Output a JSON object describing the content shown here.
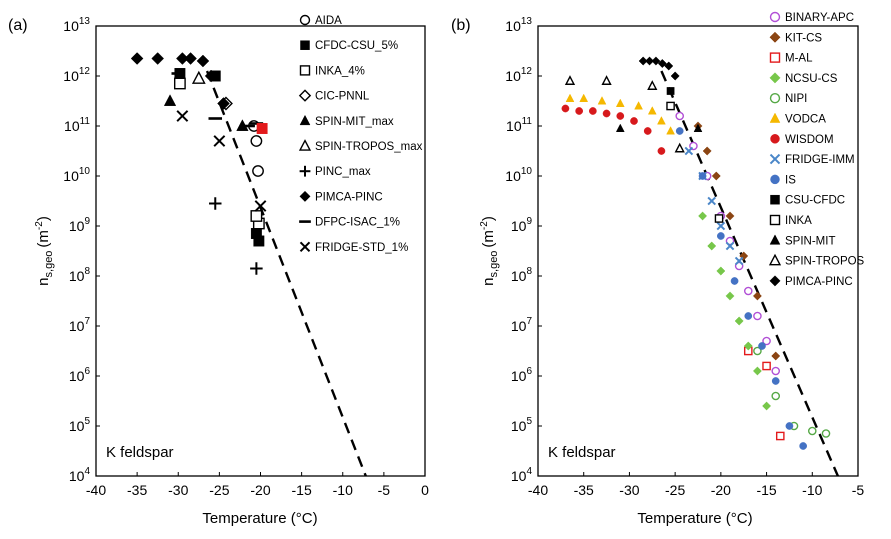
{
  "chart_data": [
    {
      "type": "scatter",
      "panel_label": "(a)",
      "annotation": "K feldspar",
      "xlabel": "Temperature (°C)",
      "ylabel_base": "n",
      "ylabel_sub": "s,geo",
      "ylabel_unit": "(m",
      "ylabel_unit_sup": "-2",
      "ylabel_close": ")",
      "xlim": [
        -40,
        0
      ],
      "ylim_log10": [
        4,
        13
      ],
      "log_y": true,
      "grid": false,
      "legend_position": "top-right",
      "x_ticks": [
        "-40",
        "-35",
        "-30",
        "-25",
        "-20",
        "-15",
        "-10",
        "-5",
        "0"
      ],
      "y_ticks": [
        {
          "base": "10",
          "exp": "4"
        },
        {
          "base": "10",
          "exp": "5"
        },
        {
          "base": "10",
          "exp": "6"
        },
        {
          "base": "10",
          "exp": "7"
        },
        {
          "base": "10",
          "exp": "8"
        },
        {
          "base": "10",
          "exp": "9"
        },
        {
          "base": "10",
          "exp": "10"
        },
        {
          "base": "10",
          "exp": "11"
        },
        {
          "base": "10",
          "exp": "12"
        },
        {
          "base": "10",
          "exp": "13"
        }
      ],
      "fit_line": {
        "style": "dashed",
        "color": "#000000",
        "x": [
          -26.5,
          -7.2
        ],
        "log10_y": [
          12.1,
          4.0
        ]
      },
      "series": [
        {
          "name": "AIDA",
          "marker": "circle-open",
          "color": "#000000",
          "x": [
            -20.3,
            -20.5,
            -20.8
          ],
          "log10_y": [
            10.1,
            10.7,
            11.0
          ]
        },
        {
          "name": "CFDC-CSU_5%",
          "marker": "square-filled",
          "color": "#000000",
          "x": [
            -20.2,
            -20.5,
            -29.8,
            -25.5
          ],
          "log10_y": [
            8.7,
            8.85,
            12.05,
            12.0
          ]
        },
        {
          "name": "INKA_4%",
          "marker": "square-open",
          "color": "#000000",
          "x": [
            -20.2,
            -20.5,
            -29.8
          ],
          "log10_y": [
            9.05,
            9.2,
            11.85
          ]
        },
        {
          "name": "CIC-PNNL",
          "marker": "diamond-open",
          "color": "#000000",
          "x": [
            -24.2
          ],
          "log10_y": [
            11.45
          ]
        },
        {
          "name": "SPIN-MIT_max",
          "marker": "triangle-filled",
          "color": "#000000",
          "x": [
            -31.0,
            -22.2
          ],
          "log10_y": [
            11.5,
            11.0
          ]
        },
        {
          "name": "SPIN-TROPOS_max",
          "marker": "triangle-open",
          "color": "#000000",
          "x": [
            -27.5
          ],
          "log10_y": [
            11.95
          ]
        },
        {
          "name": "PINC_max",
          "marker": "plus",
          "color": "#000000",
          "x": [
            -25.5,
            -20.5
          ],
          "log10_y": [
            9.45,
            8.15
          ]
        },
        {
          "name": "PIMCA-PINC",
          "marker": "diamond-filled",
          "color": "#000000",
          "x": [
            -35.0,
            -32.5,
            -29.5,
            -28.5,
            -27.0,
            -26.0,
            -24.5
          ],
          "log10_y": [
            12.35,
            12.35,
            12.35,
            12.35,
            12.3,
            12.0,
            11.45
          ]
        },
        {
          "name": "DFPC-ISAC_1%",
          "marker": "dash",
          "color": "#000000",
          "x": [
            -30.0,
            -25.5,
            -21.5,
            -20.5
          ],
          "log10_y": [
            12.05,
            11.15,
            11.0,
            11.05
          ]
        },
        {
          "name": "FRIDGE-STD_1%",
          "marker": "x",
          "color": "#000000",
          "x": [
            -29.5,
            -25.0,
            -20.0
          ],
          "log10_y": [
            11.2,
            10.7,
            9.4
          ]
        },
        {
          "name": "",
          "marker": "square-filled",
          "color": "#e31a1c",
          "x": [
            -19.8
          ],
          "log10_y": [
            10.95
          ]
        }
      ]
    },
    {
      "type": "scatter",
      "panel_label": "(b)",
      "annotation": "K feldspar",
      "xlabel": "Temperature (°C)",
      "ylabel_base": "n",
      "ylabel_sub": "s,geo",
      "ylabel_unit": "(m",
      "ylabel_unit_sup": "-2",
      "ylabel_close": ")",
      "xlim": [
        -40,
        -5
      ],
      "ylim_log10": [
        4,
        13
      ],
      "log_y": true,
      "grid": false,
      "legend_position": "top-right",
      "x_ticks": [
        "-40",
        "-35",
        "-30",
        "-25",
        "-20",
        "-15",
        "-10",
        "-5"
      ],
      "y_ticks": [
        {
          "base": "10",
          "exp": "4"
        },
        {
          "base": "10",
          "exp": "5"
        },
        {
          "base": "10",
          "exp": "6"
        },
        {
          "base": "10",
          "exp": "7"
        },
        {
          "base": "10",
          "exp": "8"
        },
        {
          "base": "10",
          "exp": "9"
        },
        {
          "base": "10",
          "exp": "10"
        },
        {
          "base": "10",
          "exp": "11"
        },
        {
          "base": "10",
          "exp": "12"
        },
        {
          "base": "10",
          "exp": "13"
        }
      ],
      "fit_line": {
        "style": "dashed",
        "color": "#000000",
        "x": [
          -26.5,
          -7.2
        ],
        "log10_y": [
          12.1,
          4.0
        ]
      },
      "series": [
        {
          "name": "BINARY-APC",
          "marker": "circle-open",
          "color": "#b14fd6",
          "x": [
            -24.5,
            -23,
            -21.5,
            -20,
            -19,
            -18,
            -17,
            -16,
            -15,
            -14
          ],
          "log10_y": [
            11.2,
            10.6,
            10.0,
            9.2,
            8.7,
            8.2,
            7.7,
            7.2,
            6.7,
            6.1
          ]
        },
        {
          "name": "KIT-CS",
          "marker": "diamond-filled",
          "color": "#8b4513",
          "x": [
            -22.5,
            -21.5,
            -20.5,
            -19,
            -17.5,
            -16,
            -14
          ],
          "log10_y": [
            11.0,
            10.5,
            10.0,
            9.2,
            8.4,
            7.6,
            6.4
          ]
        },
        {
          "name": "M-AL",
          "marker": "square-open",
          "color": "#e31a1c",
          "x": [
            -17,
            -15,
            -13.5
          ],
          "log10_y": [
            6.5,
            6.2,
            4.8
          ]
        },
        {
          "name": "NCSU-CS",
          "marker": "diamond-filled",
          "color": "#77c74a",
          "x": [
            -22,
            -21,
            -20,
            -19,
            -18,
            -17,
            -16,
            -15
          ],
          "log10_y": [
            9.2,
            8.6,
            8.1,
            7.6,
            7.1,
            6.6,
            6.1,
            5.4
          ]
        },
        {
          "name": "NIPI",
          "marker": "circle-open",
          "color": "#55a845",
          "x": [
            -16,
            -14,
            -12,
            -10,
            -8.5
          ],
          "log10_y": [
            6.5,
            5.6,
            5.0,
            4.9,
            4.85
          ]
        },
        {
          "name": "VODCA",
          "marker": "triangle-filled",
          "color": "#f5b800",
          "x": [
            -36.5,
            -35,
            -33,
            -31,
            -29,
            -27.5,
            -26.5,
            -25.5
          ],
          "log10_y": [
            11.55,
            11.55,
            11.5,
            11.45,
            11.4,
            11.3,
            11.1,
            10.9
          ]
        },
        {
          "name": "WISDOM",
          "marker": "circle-filled",
          "color": "#d7191c",
          "x": [
            -37,
            -35.5,
            -34,
            -32.5,
            -31,
            -29.5,
            -28,
            -26.5
          ],
          "log10_y": [
            11.35,
            11.3,
            11.3,
            11.25,
            11.2,
            11.1,
            10.9,
            10.5
          ]
        },
        {
          "name": "FRIDGE-IMM",
          "marker": "x",
          "color": "#4a86c8",
          "x": [
            -23.5,
            -22,
            -21,
            -20,
            -19,
            -18
          ],
          "log10_y": [
            10.5,
            10.0,
            9.5,
            9.0,
            8.6,
            8.3
          ]
        },
        {
          "name": "IS",
          "marker": "circle-filled",
          "color": "#4472c4",
          "x": [
            -24.5,
            -22,
            -20,
            -18.5,
            -17,
            -15.5,
            -14,
            -12.5,
            -11
          ],
          "log10_y": [
            10.9,
            10.0,
            8.8,
            7.9,
            7.2,
            6.6,
            5.9,
            5.0,
            4.6
          ]
        },
        {
          "name": "CSU-CFDC",
          "marker": "square-filled",
          "color": "#000000",
          "x": [
            -25.5
          ],
          "log10_y": [
            11.7
          ]
        },
        {
          "name": "INKA",
          "marker": "square-open",
          "color": "#000000",
          "x": [
            -25.5,
            -20.2
          ],
          "log10_y": [
            11.4,
            9.15
          ]
        },
        {
          "name": "SPIN-MIT",
          "marker": "triangle-filled",
          "color": "#000000",
          "x": [
            -31,
            -22.5
          ],
          "log10_y": [
            10.95,
            10.95
          ]
        },
        {
          "name": "SPIN-TROPOS",
          "marker": "triangle-open",
          "color": "#000000",
          "x": [
            -36.5,
            -32.5,
            -27.5,
            -24.5
          ],
          "log10_y": [
            11.9,
            11.9,
            11.8,
            10.55
          ]
        },
        {
          "name": "PIMCA-PINC",
          "marker": "diamond-filled",
          "color": "#000000",
          "x": [
            -28.5,
            -27.8,
            -27.1,
            -26.4,
            -25.7,
            -25.0
          ],
          "log10_y": [
            12.3,
            12.3,
            12.3,
            12.25,
            12.2,
            12.0
          ]
        }
      ]
    }
  ]
}
